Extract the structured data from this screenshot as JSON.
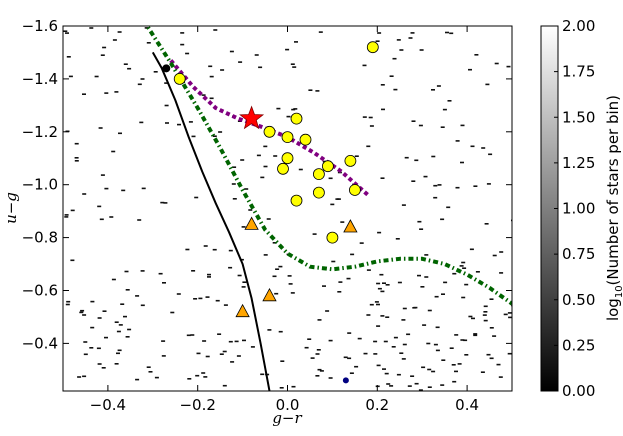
{
  "chart_data": {
    "type": "scatter",
    "xlabel": "g−r",
    "ylabel": "u−g",
    "xlim": [
      -0.5,
      0.5
    ],
    "ylim": [
      -0.22,
      -1.6
    ],
    "y_axis_inverted": true,
    "xticks": [
      "−0.4",
      "−0.2",
      "0.0",
      "0.2",
      "0.4"
    ],
    "xtick_values": [
      -0.4,
      -0.2,
      0.0,
      0.2,
      0.4
    ],
    "yticks": [
      "−1.6",
      "−1.4",
      "−1.2",
      "−1.0",
      "−0.8",
      "−0.6",
      "−0.4"
    ],
    "ytick_values": [
      -1.6,
      -1.4,
      -1.2,
      -1.0,
      -0.8,
      -0.6,
      -0.4
    ],
    "colorbar": {
      "label_prefix": "log",
      "label_sub": "10",
      "label_suffix": "(Number of stars per bin)",
      "range": [
        0.0,
        2.0
      ],
      "ticks": [
        "0.00",
        "0.25",
        "0.50",
        "0.75",
        "1.00",
        "1.25",
        "1.50",
        "1.75",
        "2.00"
      ],
      "tick_values": [
        0.0,
        0.25,
        0.5,
        0.75,
        1.0,
        1.25,
        1.5,
        1.75,
        2.0
      ],
      "colormap": "gray (black to white)"
    },
    "background": "2D histogram of field stars, sparse black bins",
    "curves": [
      {
        "style": "solid black",
        "x": [
          -0.3,
          -0.28,
          -0.25,
          -0.22,
          -0.19,
          -0.16,
          -0.13,
          -0.1,
          -0.08,
          -0.06,
          -0.04
        ],
        "y": [
          -1.5,
          -1.44,
          -1.32,
          -1.18,
          -1.05,
          -0.93,
          -0.82,
          -0.7,
          -0.57,
          -0.4,
          -0.22
        ]
      },
      {
        "style": "dotted purple",
        "x": [
          -0.26,
          -0.21,
          -0.16,
          -0.11,
          -0.06,
          0.0,
          0.06,
          0.12,
          0.18
        ],
        "y": [
          -1.47,
          -1.37,
          -1.29,
          -1.25,
          -1.22,
          -1.18,
          -1.12,
          -1.05,
          -0.96
        ]
      },
      {
        "style": "dash-dot green",
        "x": [
          -0.32,
          -0.26,
          -0.2,
          -0.15,
          -0.1,
          -0.05,
          0.0,
          0.05,
          0.1,
          0.15,
          0.2,
          0.25,
          0.3,
          0.35,
          0.4,
          0.45,
          0.5
        ],
        "y": [
          -1.62,
          -1.46,
          -1.29,
          -1.14,
          -0.98,
          -0.83,
          -0.74,
          -0.69,
          -0.68,
          -0.69,
          -0.71,
          -0.72,
          -0.72,
          -0.7,
          -0.66,
          -0.61,
          -0.55
        ]
      }
    ],
    "markers": {
      "yellow_circles": [
        [
          0.19,
          -1.52
        ],
        [
          -0.24,
          -1.4
        ],
        [
          -0.04,
          -1.2
        ],
        [
          0.02,
          -1.25
        ],
        [
          0.0,
          -1.18
        ],
        [
          0.04,
          -1.17
        ],
        [
          0.0,
          -1.1
        ],
        [
          -0.01,
          -1.06
        ],
        [
          0.07,
          -1.04
        ],
        [
          0.09,
          -1.07
        ],
        [
          0.14,
          -1.09
        ],
        [
          0.07,
          -0.97
        ],
        [
          0.15,
          -0.98
        ],
        [
          0.02,
          -0.94
        ],
        [
          0.1,
          -0.8
        ]
      ],
      "orange_triangles": [
        [
          -0.08,
          -0.85
        ],
        [
          0.14,
          -0.84
        ],
        [
          -0.04,
          -0.58
        ],
        [
          -0.1,
          -0.52
        ]
      ],
      "red_star": [
        -0.08,
        -1.25
      ],
      "black_dot": [
        -0.27,
        -1.44
      ],
      "navy_dot": [
        0.13,
        -0.26
      ]
    },
    "colors": {
      "yellow": "#ffff00",
      "orange": "#ffa500",
      "red": "#ff0000",
      "purple": "#800080",
      "green": "#006400",
      "navy": "#000080"
    }
  }
}
